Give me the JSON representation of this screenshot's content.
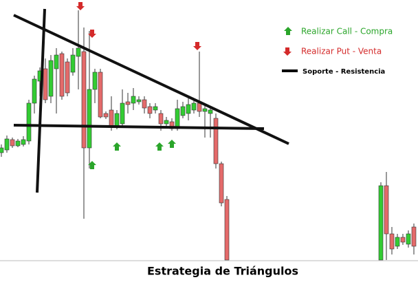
{
  "chart_data": {
    "type": "candlestick",
    "title": "Estrategia de Triángulos",
    "legend": [
      {
        "label": "Realizar Call - Compra",
        "color": "#2aa52a"
      },
      {
        "label": "Realizar Put - Venta",
        "color": "#d42a2a"
      },
      {
        "label": "Soporte - Resistencia",
        "color": "#000000"
      }
    ],
    "up_color": "#33cc33",
    "down_color": "#e46a6a",
    "xlim": [
      -0.25,
      75.75
    ],
    "ylim": [
      0,
      380
    ],
    "x": [
      0,
      1,
      2,
      3,
      4,
      5,
      6,
      7,
      8,
      9,
      10,
      11,
      12,
      13,
      14,
      15,
      16,
      17,
      18,
      19,
      20,
      21,
      22,
      23,
      24,
      25,
      26,
      27,
      28,
      29,
      30,
      31,
      32,
      33,
      34,
      35,
      36,
      37,
      38,
      39,
      40,
      41,
      69,
      70,
      71,
      72,
      73,
      74,
      75
    ],
    "open": [
      158,
      162,
      177,
      168,
      170,
      175,
      230,
      262,
      280,
      240,
      280,
      302,
      290,
      275,
      298,
      305,
      165,
      250,
      275,
      215,
      220,
      195,
      200,
      232,
      230,
      232,
      235,
      225,
      220,
      215,
      200,
      203,
      193,
      212,
      215,
      220,
      230,
      218,
      215,
      208,
      142,
      90,
      2,
      110,
      40,
      22,
      35,
      25,
      50
    ],
    "high": [
      170,
      183,
      180,
      178,
      182,
      235,
      270,
      282,
      295,
      300,
      310,
      305,
      295,
      310,
      365,
      340,
      335,
      280,
      280,
      218,
      240,
      220,
      250,
      245,
      252,
      240,
      240,
      230,
      230,
      220,
      210,
      208,
      235,
      232,
      240,
      235,
      305,
      230,
      225,
      215,
      145,
      95,
      115,
      130,
      50,
      40,
      40,
      45,
      55
    ],
    "low": [
      152,
      158,
      165,
      166,
      167,
      170,
      215,
      240,
      230,
      230,
      215,
      235,
      240,
      270,
      250,
      62,
      135,
      230,
      208,
      207,
      190,
      192,
      197,
      215,
      220,
      228,
      215,
      208,
      215,
      190,
      195,
      190,
      190,
      208,
      205,
      215,
      210,
      180,
      180,
      135,
      80,
      2,
      2,
      2,
      10,
      18,
      24,
      20,
      10
    ],
    "close": [
      165,
      178,
      168,
      175,
      177,
      230,
      265,
      277,
      235,
      292,
      300,
      240,
      245,
      300,
      310,
      165,
      250,
      275,
      210,
      210,
      195,
      215,
      230,
      228,
      240,
      235,
      223,
      215,
      225,
      200,
      205,
      193,
      222,
      225,
      228,
      230,
      218,
      222,
      220,
      142,
      85,
      2,
      110,
      40,
      18,
      35,
      28,
      40,
      22
    ]
  }
}
